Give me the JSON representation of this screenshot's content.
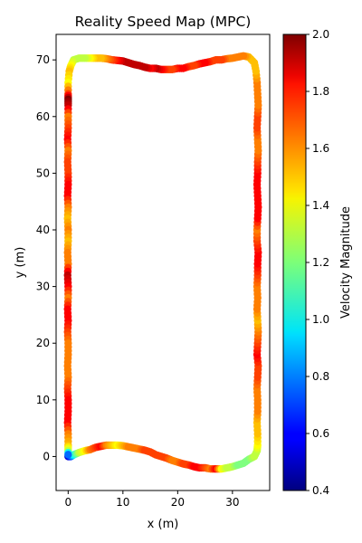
{
  "chart_data": {
    "type": "scatter",
    "title": "Reality Speed Map (MPC)",
    "xlabel": "x (m)",
    "ylabel": "y (m)",
    "xlim": [
      -2.2,
      36.8
    ],
    "ylim": [
      -6,
      74.5
    ],
    "xticks": [
      0,
      10,
      20,
      30
    ],
    "yticks": [
      0,
      10,
      20,
      30,
      40,
      50,
      60,
      70
    ],
    "grid": false,
    "colorbar": {
      "label": "Velocity Magnitude",
      "colormap": "jet",
      "vmin": 0.4,
      "vmax": 2.0,
      "ticks": [
        0.4,
        0.6,
        0.8,
        1.0,
        1.2,
        1.4,
        1.6,
        1.8,
        2.0
      ]
    },
    "series": [
      {
        "points": [
          [
            0,
            0,
            0.5
          ],
          [
            0.5,
            0,
            0.7
          ],
          [
            1,
            0.3,
            1.0
          ],
          [
            2,
            0.7,
            1.3
          ],
          [
            3,
            1,
            1.4
          ],
          [
            4,
            1.2,
            1.6
          ],
          [
            5,
            1.6,
            1.7
          ],
          [
            6,
            1.8,
            1.8
          ],
          [
            7,
            2,
            1.6
          ],
          [
            8,
            2,
            1.5
          ],
          [
            9,
            2,
            1.4
          ],
          [
            10,
            1.9,
            1.5
          ],
          [
            11,
            1.7,
            1.6
          ],
          [
            12,
            1.5,
            1.6
          ],
          [
            13,
            1.3,
            1.6
          ],
          [
            14,
            1.1,
            1.7
          ],
          [
            15,
            0.8,
            1.7
          ],
          [
            16,
            0.3,
            1.7
          ],
          [
            17,
            0,
            1.7
          ],
          [
            18,
            -0.3,
            1.7
          ],
          [
            19,
            -0.7,
            1.6
          ],
          [
            20,
            -1,
            1.6
          ],
          [
            21,
            -1.3,
            1.7
          ],
          [
            22,
            -1.5,
            1.7
          ],
          [
            23,
            -1.8,
            1.8
          ],
          [
            24,
            -2,
            1.8
          ],
          [
            25,
            -2,
            1.7
          ],
          [
            26,
            -2.2,
            1.6
          ],
          [
            27,
            -2.2,
            1.8
          ],
          [
            28,
            -2.2,
            1.4
          ],
          [
            29,
            -2,
            1.3
          ],
          [
            30,
            -1.8,
            1.3
          ],
          [
            31,
            -1.5,
            1.2
          ],
          [
            32,
            -1.2,
            1.2
          ],
          [
            33,
            -0.5,
            1.2
          ],
          [
            34,
            0,
            1.3
          ],
          [
            34.5,
            1,
            1.3
          ],
          [
            34.6,
            2,
            1.4
          ],
          [
            34.6,
            4,
            1.5
          ],
          [
            34.5,
            6,
            1.5
          ],
          [
            34.6,
            8,
            1.6
          ],
          [
            34.6,
            10,
            1.6
          ],
          [
            34.5,
            12,
            1.6
          ],
          [
            34.6,
            14,
            1.7
          ],
          [
            34.7,
            16,
            1.7
          ],
          [
            34.5,
            18,
            1.8
          ],
          [
            34.6,
            20,
            1.7
          ],
          [
            34.7,
            22,
            1.6
          ],
          [
            34.6,
            24,
            1.5
          ],
          [
            34.5,
            26,
            1.6
          ],
          [
            34.6,
            28,
            1.6
          ],
          [
            34.5,
            30,
            1.6
          ],
          [
            34.6,
            32,
            1.7
          ],
          [
            34.6,
            34,
            1.8
          ],
          [
            34.7,
            36,
            1.8
          ],
          [
            34.5,
            38,
            1.7
          ],
          [
            34.5,
            40,
            1.6
          ],
          [
            34.6,
            42,
            1.8
          ],
          [
            34.7,
            44,
            1.8
          ],
          [
            34.6,
            46,
            1.8
          ],
          [
            34.5,
            48,
            1.8
          ],
          [
            34.6,
            50,
            1.8
          ],
          [
            34.6,
            52,
            1.7
          ],
          [
            34.7,
            54,
            1.6
          ],
          [
            34.6,
            56,
            1.6
          ],
          [
            34.5,
            58,
            1.7
          ],
          [
            34.6,
            60,
            1.7
          ],
          [
            34.7,
            62,
            1.6
          ],
          [
            34.6,
            64,
            1.6
          ],
          [
            34.5,
            66,
            1.6
          ],
          [
            34.3,
            68,
            1.5
          ],
          [
            34,
            69.5,
            1.5
          ],
          [
            33,
            70.5,
            1.5
          ],
          [
            32,
            70.7,
            1.6
          ],
          [
            31,
            70.5,
            1.6
          ],
          [
            30,
            70.3,
            1.6
          ],
          [
            29,
            70.2,
            1.6
          ],
          [
            28,
            70,
            1.7
          ],
          [
            27,
            70,
            1.7
          ],
          [
            26,
            69.7,
            1.7
          ],
          [
            25,
            69.5,
            1.8
          ],
          [
            24,
            69.3,
            1.8
          ],
          [
            23,
            69,
            1.7
          ],
          [
            22,
            68.8,
            1.7
          ],
          [
            21,
            68.5,
            1.8
          ],
          [
            20,
            68.5,
            1.8
          ],
          [
            19,
            68.3,
            1.7
          ],
          [
            18,
            68.3,
            1.7
          ],
          [
            17,
            68.3,
            1.8
          ],
          [
            16,
            68.5,
            1.9
          ],
          [
            15,
            68.5,
            1.8
          ],
          [
            14,
            68.7,
            1.9
          ],
          [
            13,
            69,
            1.9
          ],
          [
            12,
            69.2,
            1.9
          ],
          [
            11,
            69.5,
            1.9
          ],
          [
            10,
            69.8,
            1.9
          ],
          [
            9,
            69.9,
            1.8
          ],
          [
            8,
            70,
            1.7
          ],
          [
            7,
            70.2,
            1.6
          ],
          [
            6,
            70.3,
            1.5
          ],
          [
            5,
            70.3,
            1.5
          ],
          [
            4,
            70.3,
            1.4
          ],
          [
            3,
            70.3,
            1.3
          ],
          [
            2,
            70.3,
            1.3
          ],
          [
            1,
            70,
            1.3
          ],
          [
            0.5,
            69,
            1.4
          ],
          [
            0.2,
            68,
            1.5
          ],
          [
            0,
            66,
            1.4
          ],
          [
            0,
            64,
            1.7
          ],
          [
            0,
            63,
            2.0
          ],
          [
            0,
            62,
            1.9
          ],
          [
            0,
            60,
            1.6
          ],
          [
            0,
            58,
            1.7
          ],
          [
            -0.1,
            56,
            1.8
          ],
          [
            0,
            54,
            1.6
          ],
          [
            -0.1,
            52,
            1.7
          ],
          [
            0,
            50,
            1.7
          ],
          [
            0,
            48,
            1.8
          ],
          [
            -0.1,
            46,
            1.8
          ],
          [
            0,
            44,
            1.6
          ],
          [
            -0.1,
            42,
            1.5
          ],
          [
            0,
            40,
            1.6
          ],
          [
            0,
            38,
            1.5
          ],
          [
            -0.1,
            36,
            1.6
          ],
          [
            0,
            34,
            1.6
          ],
          [
            -0.1,
            32,
            1.9
          ],
          [
            0,
            30,
            1.8
          ],
          [
            0,
            28,
            1.6
          ],
          [
            -0.1,
            26,
            1.8
          ],
          [
            0,
            24,
            1.8
          ],
          [
            -0.1,
            22,
            1.7
          ],
          [
            0,
            20,
            1.6
          ],
          [
            0,
            18,
            1.6
          ],
          [
            -0.1,
            16,
            1.6
          ],
          [
            0,
            14,
            1.6
          ],
          [
            -0.1,
            12,
            1.7
          ],
          [
            0,
            10,
            1.8
          ],
          [
            0,
            8,
            1.8
          ],
          [
            -0.1,
            6,
            1.8
          ],
          [
            0,
            4,
            1.6
          ],
          [
            0,
            2,
            1.5
          ],
          [
            0,
            1,
            1.3
          ]
        ]
      }
    ]
  }
}
